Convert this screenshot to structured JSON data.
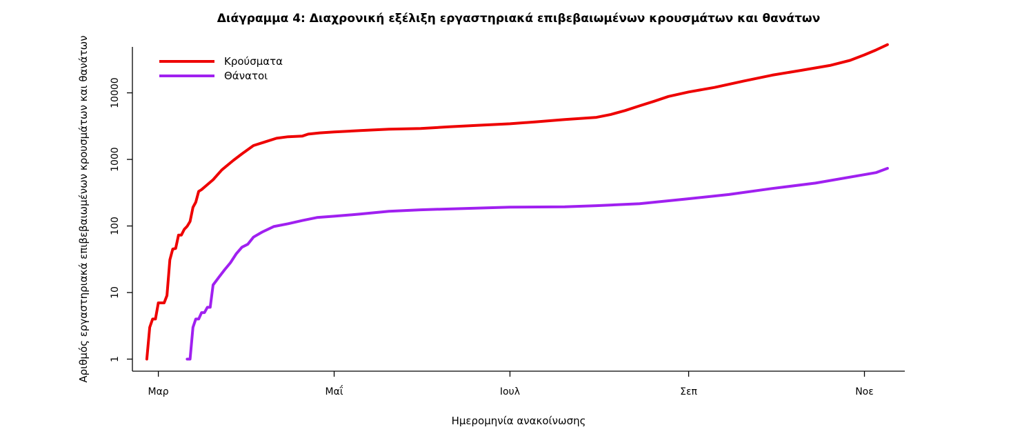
{
  "chart_data": {
    "type": "line",
    "title": "Διάγραμμα 4: Διαχρονική εξέλιξη εργαστηριακά επιβεβαιωμένων κρουσμάτων και θανάτων",
    "xlabel": "Ημερομηνία ανακοίνωσης",
    "ylabel": "Αριθμός εργαστηριακά επιβεβαιωμένων κρουσμάτων και θανάτων",
    "y_scale": "log",
    "ylim": [
      1,
      60000
    ],
    "y_ticks": [
      1,
      10,
      100,
      1000,
      10000
    ],
    "y_tick_labels": [
      "1",
      "10",
      "100",
      "1000",
      "10000"
    ],
    "xlim": [
      "2020-02-21",
      "2020-11-15"
    ],
    "x_ticks": [
      "2020-03-01",
      "2020-05-01",
      "2020-07-01",
      "2020-09-01",
      "2020-11-01"
    ],
    "x_tick_labels": [
      "Μαρ",
      "Μαΐ",
      "Ιουλ",
      "Σεπ",
      "Νοε"
    ],
    "legend_position": "top-left",
    "grid": false,
    "series": [
      {
        "name": "Κρούσματα",
        "color": "#ee0000",
        "points": [
          [
            "2020-02-26",
            1
          ],
          [
            "2020-02-27",
            3
          ],
          [
            "2020-02-28",
            4
          ],
          [
            "2020-02-29",
            4
          ],
          [
            "2020-03-01",
            7
          ],
          [
            "2020-03-02",
            7
          ],
          [
            "2020-03-03",
            7
          ],
          [
            "2020-03-04",
            9
          ],
          [
            "2020-03-05",
            31
          ],
          [
            "2020-03-06",
            45
          ],
          [
            "2020-03-07",
            46
          ],
          [
            "2020-03-08",
            73
          ],
          [
            "2020-03-09",
            73
          ],
          [
            "2020-03-10",
            89
          ],
          [
            "2020-03-11",
            99
          ],
          [
            "2020-03-12",
            117
          ],
          [
            "2020-03-13",
            190
          ],
          [
            "2020-03-14",
            228
          ],
          [
            "2020-03-15",
            331
          ],
          [
            "2020-03-16",
            352
          ],
          [
            "2020-03-18",
            418
          ],
          [
            "2020-03-20",
            495
          ],
          [
            "2020-03-23",
            695
          ],
          [
            "2020-03-27",
            966
          ],
          [
            "2020-03-30",
            1212
          ],
          [
            "2020-04-03",
            1613
          ],
          [
            "2020-04-07",
            1832
          ],
          [
            "2020-04-11",
            2081
          ],
          [
            "2020-04-15",
            2192
          ],
          [
            "2020-04-20",
            2245
          ],
          [
            "2020-04-22",
            2401
          ],
          [
            "2020-04-26",
            2506
          ],
          [
            "2020-05-01",
            2591
          ],
          [
            "2020-05-10",
            2710
          ],
          [
            "2020-05-20",
            2850
          ],
          [
            "2020-05-31",
            2915
          ],
          [
            "2020-06-10",
            3088
          ],
          [
            "2020-06-20",
            3256
          ],
          [
            "2020-07-01",
            3432
          ],
          [
            "2020-07-10",
            3672
          ],
          [
            "2020-07-20",
            3964
          ],
          [
            "2020-07-31",
            4279
          ],
          [
            "2020-08-05",
            4737
          ],
          [
            "2020-08-10",
            5421
          ],
          [
            "2020-08-15",
            6381
          ],
          [
            "2020-08-20",
            7472
          ],
          [
            "2020-08-25",
            8819
          ],
          [
            "2020-09-01",
            10317
          ],
          [
            "2020-09-10",
            12080
          ],
          [
            "2020-09-20",
            15000
          ],
          [
            "2020-09-30",
            18475
          ],
          [
            "2020-10-10",
            21772
          ],
          [
            "2020-10-20",
            25802
          ],
          [
            "2020-10-27",
            30782
          ],
          [
            "2020-11-01",
            37196
          ],
          [
            "2020-11-05",
            44000
          ],
          [
            "2020-11-09",
            53000
          ]
        ]
      },
      {
        "name": "Θάνατοι",
        "color": "#a020f0",
        "points": [
          [
            "2020-03-11",
            1
          ],
          [
            "2020-03-12",
            1
          ],
          [
            "2020-03-13",
            3
          ],
          [
            "2020-03-14",
            4
          ],
          [
            "2020-03-15",
            4
          ],
          [
            "2020-03-16",
            5
          ],
          [
            "2020-03-17",
            5
          ],
          [
            "2020-03-18",
            6
          ],
          [
            "2020-03-19",
            6
          ],
          [
            "2020-03-20",
            13
          ],
          [
            "2020-03-22",
            17
          ],
          [
            "2020-03-24",
            22
          ],
          [
            "2020-03-26",
            28
          ],
          [
            "2020-03-28",
            38
          ],
          [
            "2020-03-30",
            48
          ],
          [
            "2020-04-01",
            53
          ],
          [
            "2020-04-03",
            68
          ],
          [
            "2020-04-06",
            81
          ],
          [
            "2020-04-10",
            98
          ],
          [
            "2020-04-15",
            108
          ],
          [
            "2020-04-20",
            121
          ],
          [
            "2020-04-25",
            134
          ],
          [
            "2020-05-01",
            140
          ],
          [
            "2020-05-10",
            151
          ],
          [
            "2020-05-20",
            166
          ],
          [
            "2020-05-31",
            175
          ],
          [
            "2020-06-15",
            183
          ],
          [
            "2020-07-01",
            192
          ],
          [
            "2020-07-20",
            194
          ],
          [
            "2020-07-31",
            202
          ],
          [
            "2020-08-15",
            216
          ],
          [
            "2020-08-31",
            254
          ],
          [
            "2020-09-15",
            297
          ],
          [
            "2020-09-30",
            366
          ],
          [
            "2020-10-15",
            441
          ],
          [
            "2020-10-31",
            581
          ],
          [
            "2020-11-05",
            634
          ],
          [
            "2020-11-09",
            734
          ]
        ]
      }
    ]
  }
}
